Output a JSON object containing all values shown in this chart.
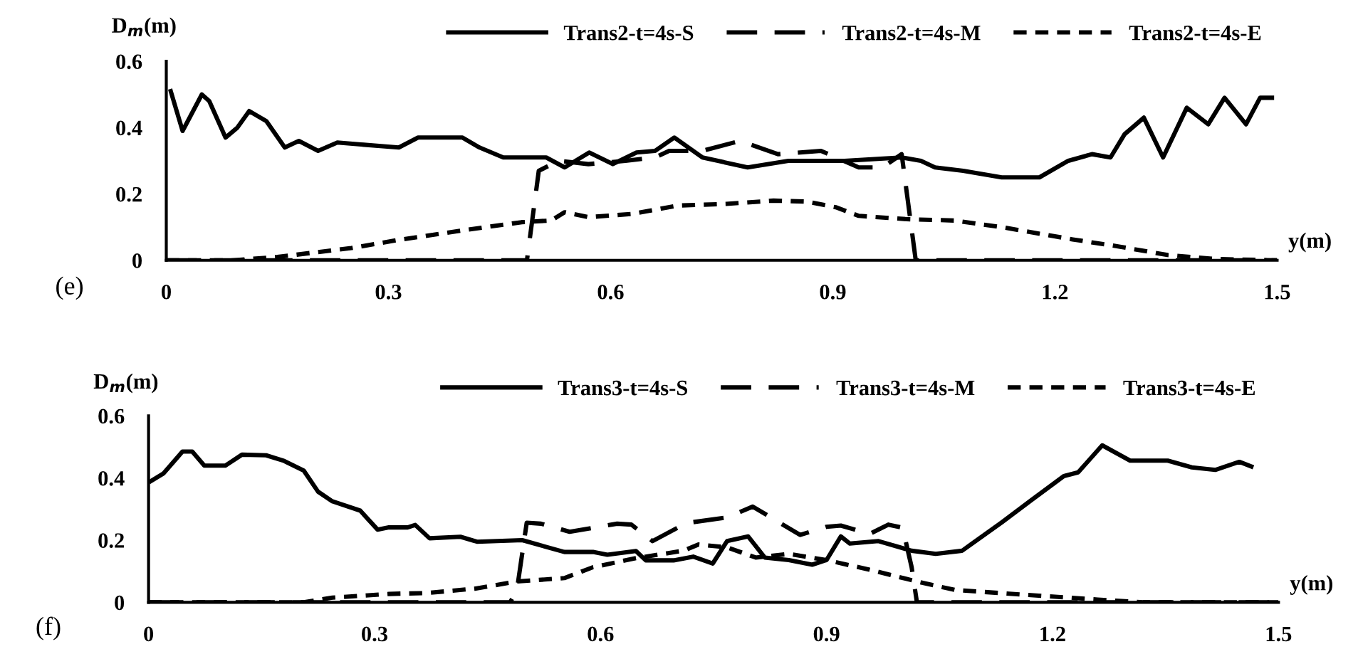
{
  "chart_data": [
    {
      "type": "line",
      "ylabel": "D$_{m}$(m)",
      "xlabel": "y(m)",
      "annotations": [
        "(e)"
      ],
      "xlim": [
        0,
        1.5
      ],
      "ylim": [
        0,
        0.6
      ],
      "xticks": [
        0,
        0.3,
        0.6,
        0.9,
        1.2,
        1.5
      ],
      "yticks": [
        0,
        0.2,
        0.4,
        0.6
      ],
      "grid": false,
      "legend": "top",
      "series": [
        {
          "name": "Trans2-t=4s-S",
          "color": "#000000",
          "line_style": "solid",
          "x": [
            0.006,
            0.022,
            0.048,
            0.058,
            0.08,
            0.096,
            0.112,
            0.135,
            0.16,
            0.179,
            0.205,
            0.231,
            0.314,
            0.34,
            0.4,
            0.423,
            0.455,
            0.513,
            0.538,
            0.571,
            0.603,
            0.635,
            0.66,
            0.686,
            0.724,
            0.785,
            0.84,
            0.916,
            0.993,
            1.019,
            1.038,
            1.076,
            1.128,
            1.179,
            1.218,
            1.25,
            1.275,
            1.294,
            1.32,
            1.346,
            1.378,
            1.407,
            1.429,
            1.458,
            1.477,
            1.493
          ],
          "values": [
            0.51,
            0.39,
            0.5,
            0.48,
            0.37,
            0.4,
            0.45,
            0.42,
            0.34,
            0.36,
            0.33,
            0.355,
            0.34,
            0.37,
            0.37,
            0.34,
            0.31,
            0.31,
            0.28,
            0.325,
            0.29,
            0.325,
            0.33,
            0.37,
            0.31,
            0.28,
            0.3,
            0.3,
            0.31,
            0.3,
            0.28,
            0.27,
            0.25,
            0.25,
            0.3,
            0.32,
            0.31,
            0.38,
            0.43,
            0.31,
            0.46,
            0.41,
            0.49,
            0.41,
            0.49,
            0.49
          ]
        },
        {
          "name": "Trans2-t=4s-M",
          "color": "#000000",
          "line_style": "dashed",
          "x": [
            0,
            0.2,
            0.487,
            0.503,
            0.53,
            0.57,
            0.62,
            0.66,
            0.679,
            0.724,
            0.775,
            0.826,
            0.884,
            0.935,
            0.967,
            0.993,
            1.012,
            1.025,
            1.5
          ],
          "values": [
            0,
            0,
            0,
            0.27,
            0.3,
            0.29,
            0.3,
            0.31,
            0.33,
            0.33,
            0.36,
            0.32,
            0.33,
            0.28,
            0.28,
            0.32,
            0,
            0,
            0
          ]
        },
        {
          "name": "Trans2-t=4s-E",
          "color": "#000000",
          "line_style": "dotted",
          "x": [
            0,
            0.09,
            0.15,
            0.25,
            0.31,
            0.4,
            0.48,
            0.52,
            0.538,
            0.57,
            0.63,
            0.69,
            0.756,
            0.82,
            0.865,
            0.904,
            0.935,
            1.0,
            1.064,
            1.128,
            1.224,
            1.288,
            1.352,
            1.416,
            1.5
          ],
          "values": [
            0,
            0,
            0.01,
            0.037,
            0.06,
            0.09,
            0.115,
            0.12,
            0.145,
            0.13,
            0.14,
            0.165,
            0.17,
            0.18,
            0.177,
            0.16,
            0.134,
            0.124,
            0.12,
            0.1,
            0.063,
            0.041,
            0.016,
            0.004,
            0
          ]
        }
      ]
    },
    {
      "type": "line",
      "ylabel": "D$_{m}$(m)",
      "xlabel": "y(m)",
      "annotations": [
        "(f)"
      ],
      "xlim": [
        0,
        1.5
      ],
      "ylim": [
        0,
        0.6
      ],
      "xticks": [
        0,
        0.3,
        0.6,
        0.9,
        1.2,
        1.5
      ],
      "yticks": [
        0,
        0.2,
        0.4,
        0.6
      ],
      "grid": false,
      "legend": "top",
      "series": [
        {
          "name": "Trans3-t=4s-S",
          "color": "#000000",
          "line_style": "solid",
          "x": [
            0.003,
            0.02,
            0.045,
            0.058,
            0.074,
            0.102,
            0.124,
            0.156,
            0.18,
            0.206,
            0.225,
            0.244,
            0.281,
            0.304,
            0.319,
            0.344,
            0.354,
            0.373,
            0.414,
            0.436,
            0.496,
            0.552,
            0.59,
            0.609,
            0.647,
            0.66,
            0.697,
            0.723,
            0.749,
            0.768,
            0.796,
            0.818,
            0.85,
            0.881,
            0.9,
            0.919,
            0.931,
            0.969,
            1.013,
            1.045,
            1.08,
            1.133,
            1.171,
            1.215,
            1.234,
            1.266,
            1.303,
            1.353,
            1.385,
            1.416,
            1.448,
            1.464
          ],
          "values": [
            0.39,
            0.415,
            0.485,
            0.485,
            0.44,
            0.44,
            0.475,
            0.473,
            0.455,
            0.424,
            0.356,
            0.325,
            0.295,
            0.234,
            0.241,
            0.241,
            0.249,
            0.206,
            0.211,
            0.195,
            0.2,
            0.162,
            0.162,
            0.153,
            0.165,
            0.135,
            0.135,
            0.147,
            0.125,
            0.197,
            0.212,
            0.144,
            0.136,
            0.121,
            0.136,
            0.212,
            0.189,
            0.197,
            0.166,
            0.156,
            0.166,
            0.258,
            0.327,
            0.406,
            0.418,
            0.505,
            0.456,
            0.456,
            0.434,
            0.426,
            0.452,
            0.437
          ]
        },
        {
          "name": "Trans3-t=4s-M",
          "color": "#000000",
          "line_style": "dashed",
          "x": [
            0,
            0.2,
            0.48,
            0.489,
            0.502,
            0.521,
            0.559,
            0.622,
            0.641,
            0.669,
            0.71,
            0.723,
            0.768,
            0.802,
            0.831,
            0.865,
            0.9,
            0.919,
            0.957,
            0.982,
            1.001,
            1.013,
            1.02,
            1.5
          ],
          "values": [
            0,
            0,
            0,
            0.04,
            0.256,
            0.253,
            0.227,
            0.253,
            0.25,
            0.197,
            0.25,
            0.258,
            0.273,
            0.308,
            0.266,
            0.217,
            0.243,
            0.247,
            0.22,
            0.25,
            0.24,
            0.113,
            0,
            0
          ]
        },
        {
          "name": "Trans3-t=4s-E",
          "color": "#000000",
          "line_style": "dotted",
          "x": [
            0,
            0.206,
            0.244,
            0.319,
            0.37,
            0.433,
            0.489,
            0.552,
            0.59,
            0.647,
            0.71,
            0.73,
            0.768,
            0.806,
            0.85,
            0.9,
            0.957,
            1.02,
            1.07,
            1.165,
            1.26,
            1.32,
            1.5
          ],
          "values": [
            0,
            0,
            0.015,
            0.027,
            0.03,
            0.044,
            0.067,
            0.078,
            0.113,
            0.142,
            0.166,
            0.186,
            0.177,
            0.144,
            0.156,
            0.136,
            0.105,
            0.067,
            0.04,
            0.024,
            0.009,
            0,
            0
          ]
        }
      ]
    }
  ]
}
